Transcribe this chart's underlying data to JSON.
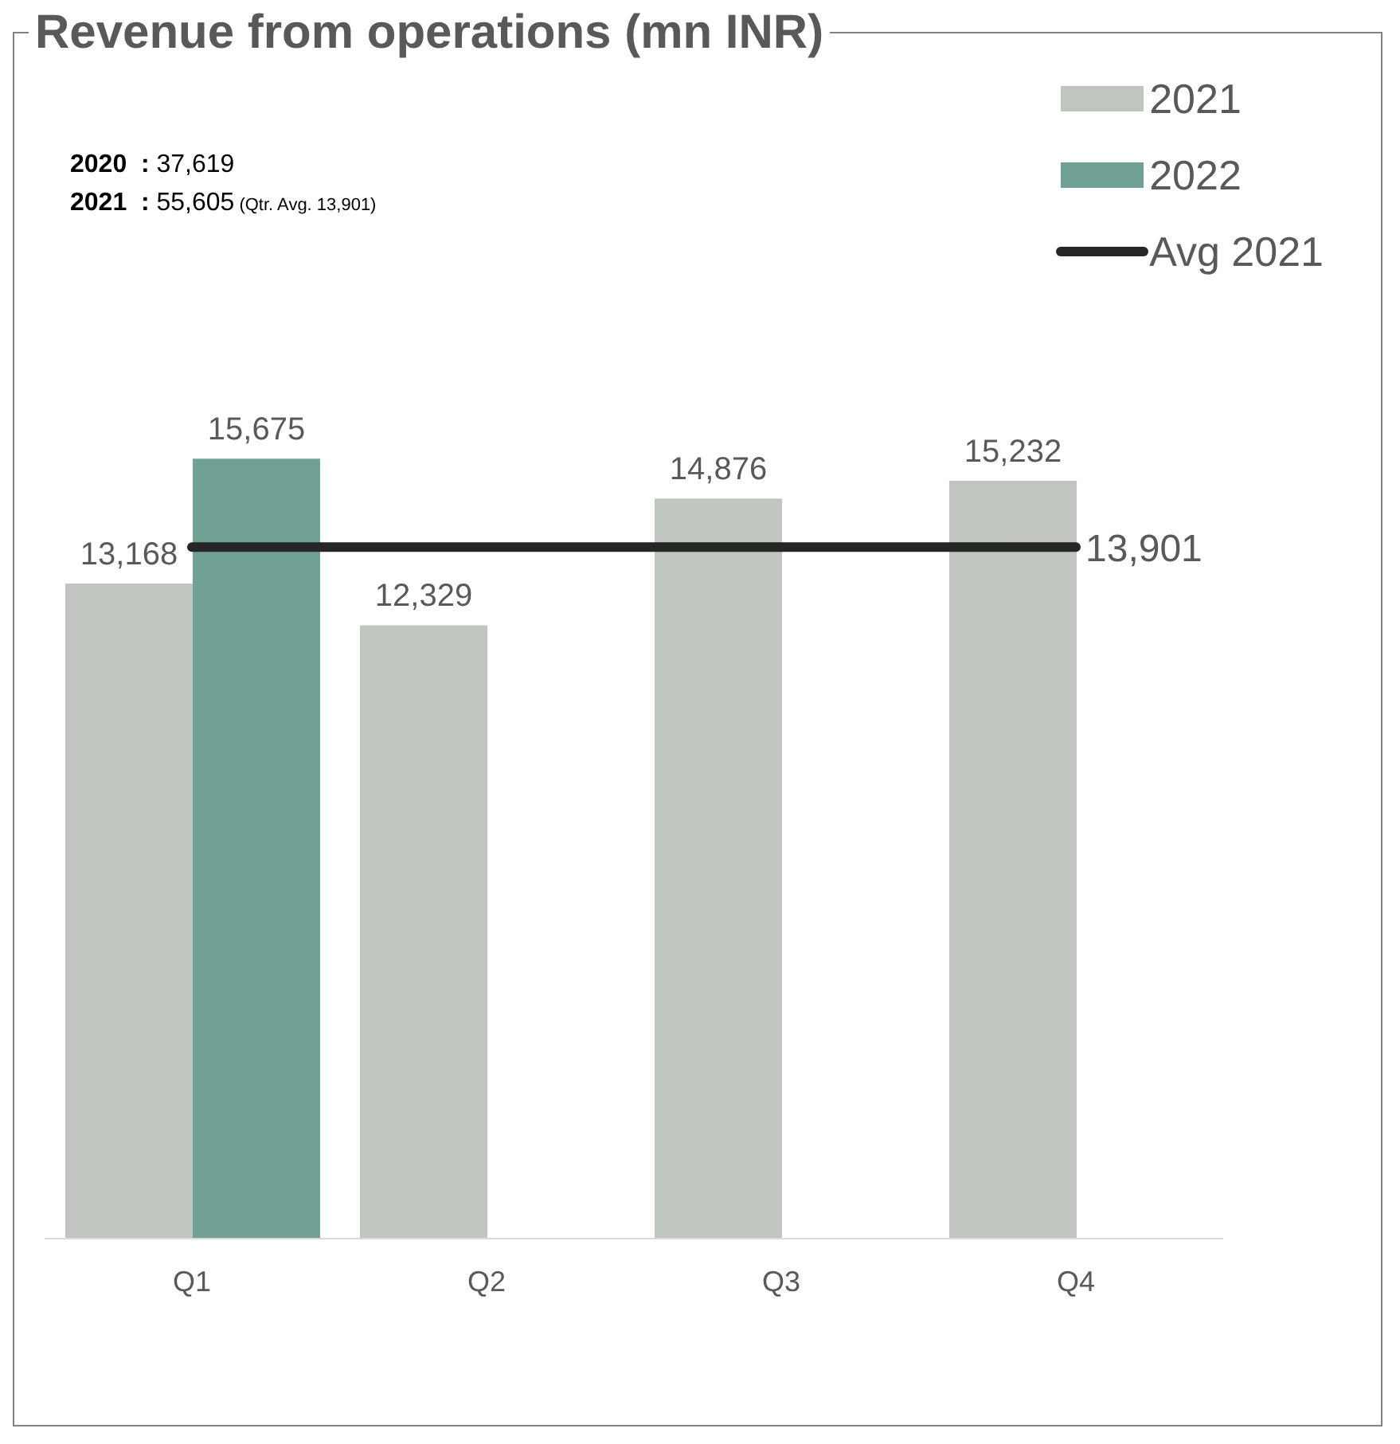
{
  "chart_data": {
    "type": "bar",
    "title": "Revenue from operations (mn INR)",
    "categories": [
      "Q1",
      "Q2",
      "Q3",
      "Q4"
    ],
    "series": [
      {
        "name": "2021",
        "color": "#c0c5bf",
        "values": [
          13168,
          12329,
          14876,
          15232
        ],
        "value_labels": [
          "13,168",
          "12,329",
          "14,876",
          "15,232"
        ]
      },
      {
        "name": "2022",
        "color": "#71a095",
        "values": [
          15675,
          null,
          null,
          null
        ],
        "value_labels": [
          "15,675",
          null,
          null,
          null
        ]
      },
      {
        "name": "Avg 2021",
        "type": "line",
        "color": "#262626",
        "values": [
          13901,
          null,
          null,
          13901
        ],
        "value_labels": [
          null,
          null,
          null,
          "13,901"
        ]
      }
    ],
    "annotations": [
      "2020 : 37,619",
      "2021 : 55,605 (Qtr. Avg. 13,901)"
    ],
    "legend": "top right"
  }
}
